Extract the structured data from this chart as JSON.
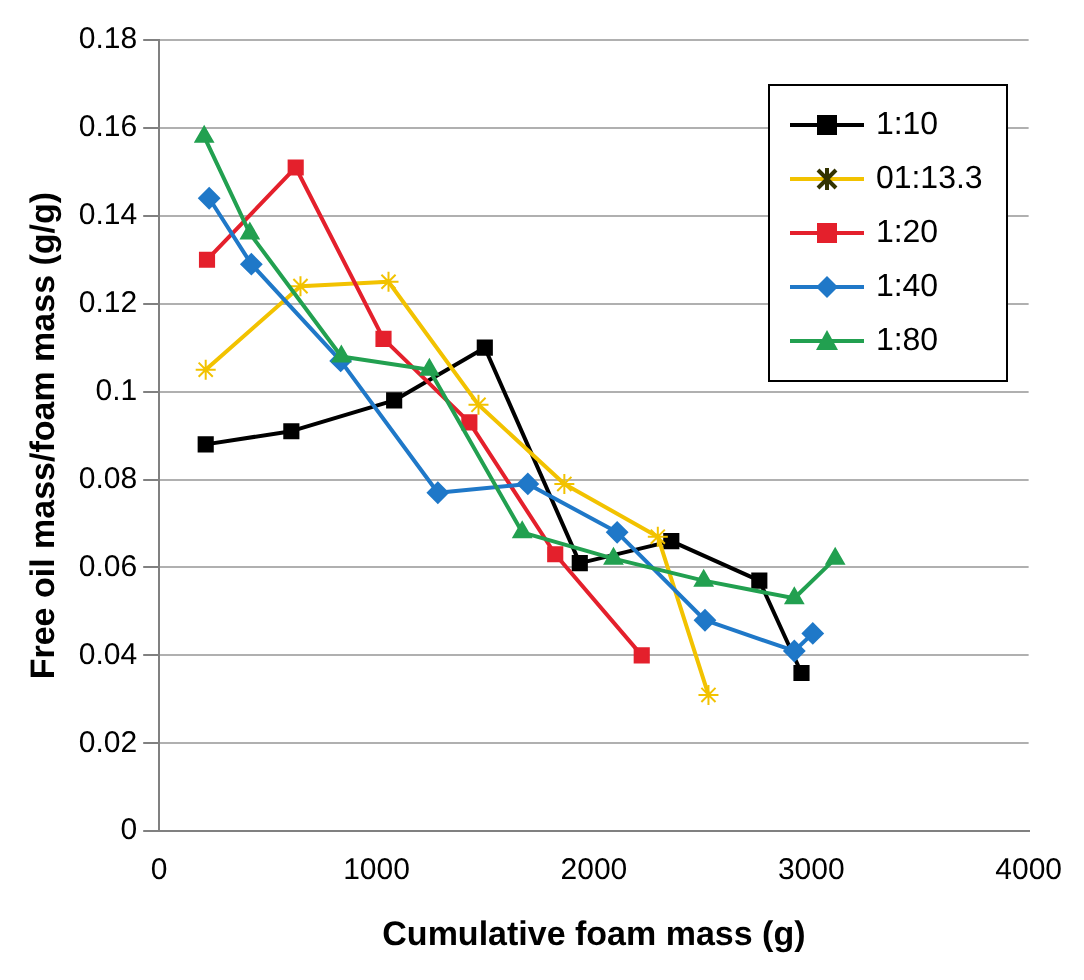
{
  "chart_data": {
    "type": "line",
    "xlabel": "Cumulative foam mass (g)",
    "ylabel": "Free oil mass/foam mass (g/g)",
    "xlim": [
      0,
      4000
    ],
    "xticks": [
      0,
      1000,
      2000,
      3000,
      4000
    ],
    "ylim": [
      0,
      0.18
    ],
    "yticks": [
      0,
      0.02,
      0.04,
      0.06,
      0.08,
      0.1,
      0.12,
      0.14,
      0.16,
      0.18
    ],
    "grid": "y",
    "legend": "top right",
    "series": [
      {
        "name": "1:10",
        "color": "#000000",
        "marker": "square",
        "x": [
          214,
          608,
          1081,
          1498,
          1935,
          2356,
          2761,
          2955
        ],
        "values": [
          0.088,
          0.091,
          0.098,
          0.11,
          0.061,
          0.066,
          0.057,
          0.036
        ]
      },
      {
        "name": "01:13.3",
        "color": "#f2c200",
        "marker": "cross",
        "x": [
          214,
          650,
          1055,
          1469,
          1864,
          2294,
          2527
        ],
        "values": [
          0.105,
          0.124,
          0.125,
          0.097,
          0.079,
          0.067,
          0.031
        ]
      },
      {
        "name": "1:20",
        "color": "#e4202c",
        "marker": "square",
        "x": [
          220,
          628,
          1032,
          1427,
          1822,
          2220
        ],
        "values": [
          0.13,
          0.151,
          0.112,
          0.093,
          0.063,
          0.04
        ]
      },
      {
        "name": "1:40",
        "color": "#1f78c8",
        "marker": "diamond",
        "x": [
          230,
          424,
          835,
          1282,
          1696,
          2107,
          2511,
          2922,
          3007
        ],
        "values": [
          0.144,
          0.129,
          0.107,
          0.077,
          0.079,
          0.068,
          0.048,
          0.041,
          0.045
        ]
      },
      {
        "name": "1:80",
        "color": "#22a050",
        "marker": "triangle",
        "x": [
          207,
          417,
          838,
          1243,
          1670,
          2090,
          2505,
          2922,
          3110
        ],
        "values": [
          0.158,
          0.136,
          0.108,
          0.105,
          0.068,
          0.062,
          0.057,
          0.053,
          0.062
        ]
      }
    ]
  }
}
